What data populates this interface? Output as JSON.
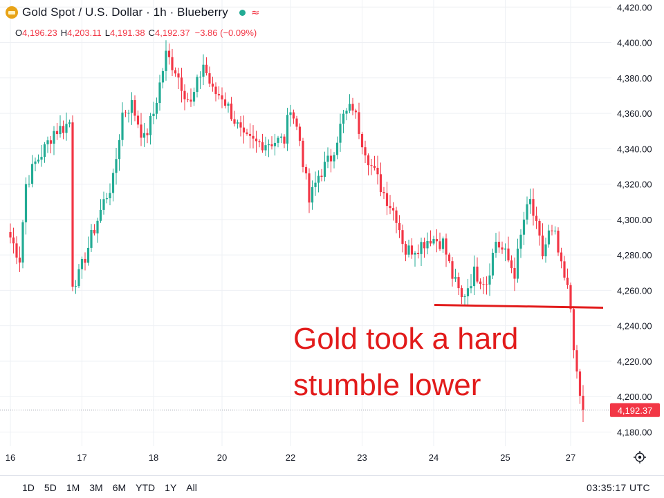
{
  "header": {
    "title": "Gold Spot / U.S. Dollar · 1h · Blueberry",
    "approx_symbol": "≈",
    "ohlc": {
      "o_label": "O",
      "o_value": "4,196.23",
      "h_label": "H",
      "h_value": "4,203.11",
      "l_label": "L",
      "l_value": "4,191.38",
      "c_label": "C",
      "c_value": "4,192.37",
      "change": "−3.86 (−0.09%)"
    }
  },
  "annotation": {
    "line1": "Gold took a hard",
    "line2": "stumble lower",
    "support_level": 4251,
    "color": "#e21b1b"
  },
  "price_label": "4,192.37",
  "timeframes": [
    "1D",
    "5D",
    "1M",
    "3M",
    "6M",
    "YTD",
    "1Y",
    "All"
  ],
  "utc_time": "03:35:17 UTC",
  "colors": {
    "up": "#22ab94",
    "down": "#f23645",
    "grid": "#eef0f4",
    "axis_text": "#131722"
  },
  "chart_data": {
    "type": "candlestick",
    "title": "Gold Spot / U.S. Dollar · 1h · Blueberry",
    "ylim": [
      4172,
      4424
    ],
    "yticks": [
      4180,
      4200,
      4220,
      4240,
      4260,
      4280,
      4300,
      4320,
      4340,
      4360,
      4380,
      4400,
      4420
    ],
    "ytick_labels": [
      "4,180.00",
      "4,200.00",
      "4,220.00",
      "4,240.00",
      "4,260.00",
      "4,280.00",
      "4,300.00",
      "4,320.00",
      "4,340.00",
      "4,360.00",
      "4,380.00",
      "4,400.00",
      "4,420.00"
    ],
    "xticks": [
      {
        "label": "16",
        "bar": 0
      },
      {
        "label": "17",
        "bar": 23
      },
      {
        "label": "18",
        "bar": 46
      },
      {
        "label": "20",
        "bar": 68
      },
      {
        "label": "22",
        "bar": 90
      },
      {
        "label": "23",
        "bar": 113
      },
      {
        "label": "24",
        "bar": 136
      },
      {
        "label": "25",
        "bar": 159
      },
      {
        "label": "27",
        "bar": 180
      }
    ],
    "last_price": 4192.37,
    "anchors": [
      [
        0,
        4290
      ],
      [
        3,
        4278
      ],
      [
        5,
        4320
      ],
      [
        8,
        4332
      ],
      [
        11,
        4340
      ],
      [
        14,
        4350
      ],
      [
        17,
        4352
      ],
      [
        19,
        4355
      ],
      [
        20,
        4265
      ],
      [
        22,
        4268
      ],
      [
        26,
        4290
      ],
      [
        30,
        4310
      ],
      [
        33,
        4322
      ],
      [
        36,
        4360
      ],
      [
        39,
        4365
      ],
      [
        43,
        4345
      ],
      [
        46,
        4360
      ],
      [
        50,
        4393
      ],
      [
        53,
        4385
      ],
      [
        56,
        4372
      ],
      [
        58,
        4365
      ],
      [
        62,
        4388
      ],
      [
        65,
        4372
      ],
      [
        68,
        4370
      ],
      [
        71,
        4360
      ],
      [
        75,
        4345
      ],
      [
        79,
        4343
      ],
      [
        84,
        4344
      ],
      [
        88,
        4345
      ],
      [
        90,
        4365
      ],
      [
        93,
        4345
      ],
      [
        96,
        4310
      ],
      [
        99,
        4325
      ],
      [
        103,
        4335
      ],
      [
        107,
        4358
      ],
      [
        110,
        4364
      ],
      [
        113,
        4345
      ],
      [
        116,
        4330
      ],
      [
        120,
        4315
      ],
      [
        124,
        4302
      ],
      [
        127,
        4282
      ],
      [
        131,
        4285
      ],
      [
        135,
        4290
      ],
      [
        139,
        4287
      ],
      [
        142,
        4268
      ],
      [
        145,
        4255
      ],
      [
        149,
        4270
      ],
      [
        153,
        4265
      ],
      [
        156,
        4288
      ],
      [
        159,
        4280
      ],
      [
        162,
        4270
      ],
      [
        165,
        4300
      ],
      [
        167,
        4310
      ],
      [
        169,
        4295
      ],
      [
        171,
        4280
      ],
      [
        173,
        4292
      ],
      [
        175,
        4290
      ],
      [
        177,
        4272
      ],
      [
        179,
        4260
      ],
      [
        180,
        4250
      ],
      [
        181,
        4230
      ],
      [
        182,
        4210
      ],
      [
        183,
        4200
      ],
      [
        184,
        4192
      ]
    ]
  }
}
